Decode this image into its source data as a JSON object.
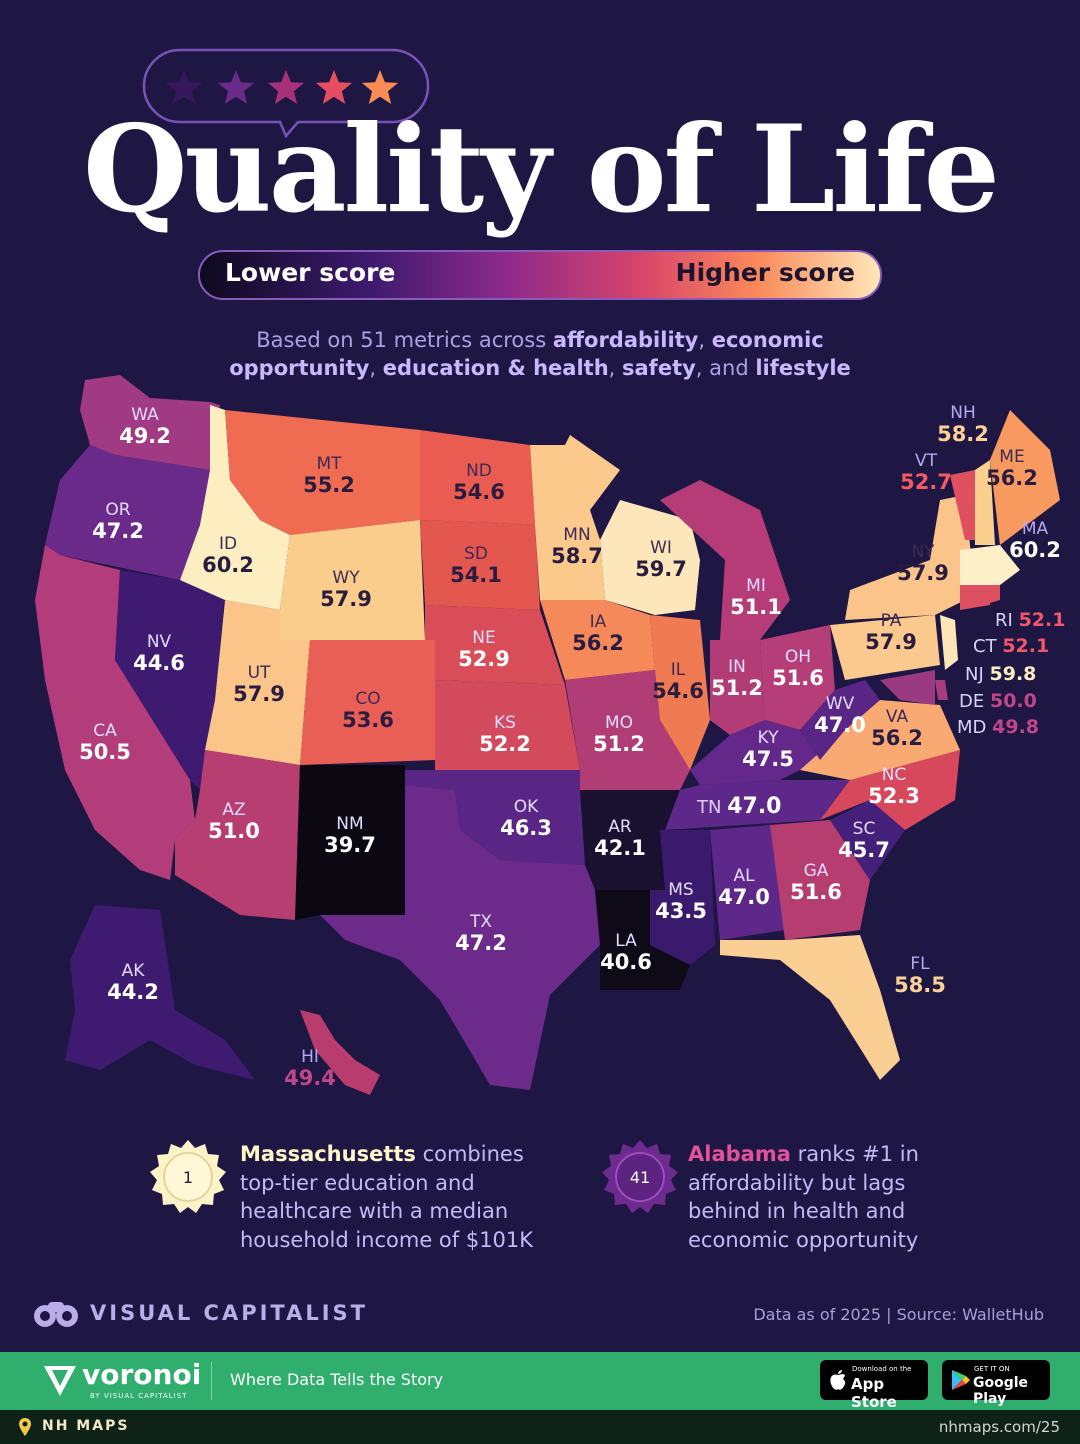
{
  "title": "Quality of Life",
  "legend": {
    "low": "Lower score",
    "high": "Higher score"
  },
  "subtitle": {
    "line1_prefix": "Based on 51 metrics across ",
    "affordability": "affordability",
    "sep1": ", ",
    "economic": "economic",
    "opportunity": "opportunity",
    "sep2": ", ",
    "education_health": "education & health",
    "sep3": ", ",
    "safety": "safety",
    "sep4": ", and ",
    "lifestyle": "lifestyle"
  },
  "states": {
    "WA": {
      "abbr": "WA",
      "score": "49.2"
    },
    "OR": {
      "abbr": "OR",
      "score": "47.2"
    },
    "CA": {
      "abbr": "CA",
      "score": "50.5"
    },
    "NV": {
      "abbr": "NV",
      "score": "44.6"
    },
    "ID": {
      "abbr": "ID",
      "score": "60.2"
    },
    "MT": {
      "abbr": "MT",
      "score": "55.2"
    },
    "WY": {
      "abbr": "WY",
      "score": "57.9"
    },
    "UT": {
      "abbr": "UT",
      "score": "57.9"
    },
    "AZ": {
      "abbr": "AZ",
      "score": "51.0"
    },
    "NM": {
      "abbr": "NM",
      "score": "39.7"
    },
    "CO": {
      "abbr": "CO",
      "score": "53.6"
    },
    "ND": {
      "abbr": "ND",
      "score": "54.6"
    },
    "SD": {
      "abbr": "SD",
      "score": "54.1"
    },
    "NE": {
      "abbr": "NE",
      "score": "52.9"
    },
    "KS": {
      "abbr": "KS",
      "score": "52.2"
    },
    "OK": {
      "abbr": "OK",
      "score": "46.3"
    },
    "TX": {
      "abbr": "TX",
      "score": "47.2"
    },
    "MN": {
      "abbr": "MN",
      "score": "58.7"
    },
    "IA": {
      "abbr": "IA",
      "score": "56.2"
    },
    "MO": {
      "abbr": "MO",
      "score": "51.2"
    },
    "AR": {
      "abbr": "AR",
      "score": "42.1"
    },
    "LA": {
      "abbr": "LA",
      "score": "40.6"
    },
    "WI": {
      "abbr": "WI",
      "score": "59.7"
    },
    "IL": {
      "abbr": "IL",
      "score": "54.6"
    },
    "MI": {
      "abbr": "MI",
      "score": "51.1"
    },
    "IN": {
      "abbr": "IN",
      "score": "51.2"
    },
    "OH": {
      "abbr": "OH",
      "score": "51.6"
    },
    "KY": {
      "abbr": "KY",
      "score": "47.5"
    },
    "TN": {
      "abbr": "TN",
      "score": "47.0"
    },
    "MS": {
      "abbr": "MS",
      "score": "43.5"
    },
    "AL": {
      "abbr": "AL",
      "score": "47.0"
    },
    "GA": {
      "abbr": "GA",
      "score": "51.6"
    },
    "FL": {
      "abbr": "FL",
      "score": "58.5"
    },
    "SC": {
      "abbr": "SC",
      "score": "45.7"
    },
    "NC": {
      "abbr": "NC",
      "score": "52.3"
    },
    "VA": {
      "abbr": "VA",
      "score": "56.2"
    },
    "WV": {
      "abbr": "WV",
      "score": "47.0"
    },
    "PA": {
      "abbr": "PA",
      "score": "57.9"
    },
    "NY": {
      "abbr": "NY",
      "score": "57.9"
    },
    "VT": {
      "abbr": "VT",
      "score": "52.7"
    },
    "NH": {
      "abbr": "NH",
      "score": "58.2"
    },
    "ME": {
      "abbr": "ME",
      "score": "56.2"
    },
    "MA": {
      "abbr": "MA",
      "score": "60.2"
    },
    "RI": {
      "abbr": "RI",
      "score": "52.1"
    },
    "CT": {
      "abbr": "CT",
      "score": "52.1"
    },
    "NJ": {
      "abbr": "NJ",
      "score": "59.8"
    },
    "DE": {
      "abbr": "DE",
      "score": "50.0"
    },
    "MD": {
      "abbr": "MD",
      "score": "49.8"
    },
    "AK": {
      "abbr": "AK",
      "score": "44.2"
    },
    "HI": {
      "abbr": "HI",
      "score": "49.4"
    }
  },
  "notes": {
    "ma": {
      "rank": "1",
      "bold": "Massachusetts",
      "l1": " combines",
      "l2": "top-tier education and",
      "l3": "healthcare with a median",
      "l4": "household income of $101K"
    },
    "al": {
      "rank": "41",
      "bold": "Alabama",
      "l1": " ranks #1 in",
      "l2": "affordability but lags",
      "l3": "behind in health and",
      "l4": "economic opportunity"
    }
  },
  "brand": "VISUAL CAPITALIST",
  "source": "Data as of 2025 | Source: WalletHub",
  "footer": {
    "logo": "voronoi",
    "logo_sub": "BY VISUAL CAPITALIST",
    "tagline": "Where Data Tells the Story",
    "appstore_small": "Download on the",
    "appstore_big": "App Store",
    "google_small": "GET IT ON",
    "google_big": "Google Play"
  },
  "bottom": {
    "left": "NH MAPS",
    "right": "nhmaps.com/25"
  },
  "colors": {
    "background": "#1f1743",
    "lowest": "#0b0812",
    "highest": "#fdedc0",
    "footer": "#2fae6e"
  },
  "icons": [
    "star-icon",
    "rank-badge-icon",
    "binoculars-icon",
    "voronoi-logo-icon",
    "apple-icon",
    "google-play-icon",
    "pin-icon"
  ]
}
